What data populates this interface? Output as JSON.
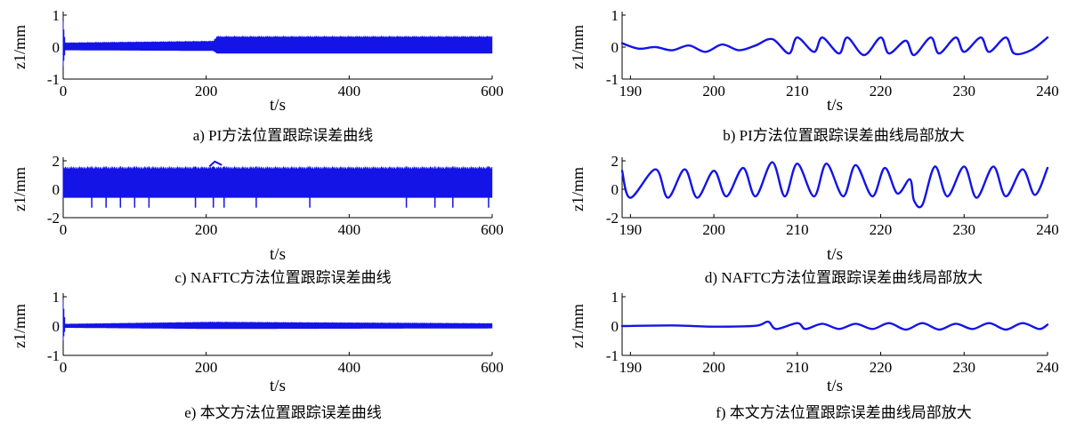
{
  "figure": {
    "panels": [
      {
        "id": "a",
        "caption": "a)   PI方法位置跟踪误差曲线"
      },
      {
        "id": "b",
        "caption": "b)   PI方法位置跟踪误差曲线局部放大"
      },
      {
        "id": "c",
        "caption": "c)   NAFTC方法位置跟踪误差曲线"
      },
      {
        "id": "d",
        "caption": "d)   NAFTC方法位置跟踪误差曲线局部放大"
      },
      {
        "id": "e",
        "caption": "e)   本文方法位置跟踪误差曲线"
      },
      {
        "id": "f",
        "caption": "f)   本文方法位置跟踪误差曲线局部放大"
      }
    ],
    "series_color": "#1414e6"
  },
  "chart_data": [
    {
      "id": "a",
      "type": "line",
      "title": "",
      "xlabel": "t/s",
      "ylabel": "z1/mm",
      "xlim": [
        0,
        600
      ],
      "ylim": [
        -1,
        1
      ],
      "xticks": [
        "0",
        "200",
        "400",
        "600"
      ],
      "yticks": [
        "1",
        "0",
        "-1"
      ],
      "series": [
        {
          "x": [
            0,
            3,
            10,
            210,
            215,
            600
          ],
          "ymin": [
            -0.6,
            -0.1,
            -0.1,
            -0.12,
            -0.2,
            -0.2
          ],
          "ymax": [
            0.8,
            0.15,
            0.15,
            0.2,
            0.35,
            0.35
          ]
        }
      ]
    },
    {
      "id": "b",
      "type": "line",
      "title": "",
      "xlabel": "t/s",
      "ylabel": "z1/mm",
      "xlim": [
        189,
        240
      ],
      "ylim": [
        -1,
        1
      ],
      "xticks": [
        "190",
        "200",
        "210",
        "220",
        "230",
        "240"
      ],
      "yticks": [
        "1",
        "0",
        "-1"
      ],
      "series": [
        {
          "x": [
            189,
            191,
            193,
            195,
            197,
            199,
            201,
            203,
            205,
            207,
            209,
            210,
            212,
            213,
            215,
            216,
            218,
            220,
            221,
            223,
            224,
            226,
            227,
            229,
            230,
            232,
            233,
            235,
            236,
            238,
            240
          ],
          "y": [
            0.12,
            -0.05,
            0.0,
            -0.1,
            0.05,
            -0.15,
            0.08,
            -0.1,
            0.05,
            0.25,
            -0.2,
            0.3,
            -0.15,
            0.3,
            -0.2,
            0.3,
            -0.25,
            0.3,
            -0.2,
            0.2,
            -0.25,
            0.3,
            -0.2,
            0.3,
            -0.15,
            0.3,
            -0.15,
            0.3,
            -0.2,
            -0.1,
            0.3
          ]
        }
      ]
    },
    {
      "id": "c",
      "type": "line",
      "title": "",
      "xlabel": "t/s",
      "ylabel": "z1/mm",
      "xlim": [
        0,
        600
      ],
      "ylim": [
        -2,
        2
      ],
      "xticks": [
        "0",
        "200",
        "400",
        "600"
      ],
      "yticks": [
        "2",
        "0",
        "-2"
      ],
      "series": [
        {
          "x": [
            0,
            210,
            600
          ],
          "ymin": [
            -0.6,
            -0.6,
            -0.6
          ],
          "ymax": [
            1.6,
            1.6,
            1.6
          ]
        }
      ],
      "annotations": [
        {
          "x": 212,
          "y": 1.95
        }
      ]
    },
    {
      "id": "d",
      "type": "line",
      "title": "",
      "xlabel": "t/s",
      "ylabel": "z1/mm",
      "xlim": [
        189,
        240
      ],
      "ylim": [
        -2,
        2
      ],
      "xticks": [
        "190",
        "200",
        "210",
        "220",
        "230",
        "240"
      ],
      "yticks": [
        "2",
        "0",
        "-2"
      ],
      "series": [
        {
          "x": [
            189,
            190,
            193,
            194.5,
            196.5,
            198,
            200,
            201.5,
            203.5,
            205,
            207,
            208.5,
            210,
            212,
            213.5,
            215.5,
            217,
            219,
            220.5,
            222,
            223.5,
            224,
            225,
            226.5,
            228,
            230,
            231.5,
            233.5,
            235,
            237,
            238.5,
            240
          ],
          "y": [
            1.3,
            -0.6,
            1.4,
            -0.6,
            1.4,
            -0.6,
            1.3,
            -0.5,
            1.5,
            -0.5,
            1.9,
            -0.5,
            1.8,
            -0.5,
            1.8,
            -0.5,
            1.7,
            -0.5,
            1.5,
            -0.3,
            0.7,
            -0.8,
            -1.1,
            1.6,
            -0.5,
            1.6,
            -0.6,
            1.6,
            -0.5,
            1.4,
            -0.4,
            1.5
          ]
        }
      ]
    },
    {
      "id": "e",
      "type": "line",
      "title": "",
      "xlabel": "t/s",
      "ylabel": "z1/mm",
      "xlim": [
        0,
        600
      ],
      "ylim": [
        -1,
        1
      ],
      "xticks": [
        "0",
        "200",
        "400",
        "600"
      ],
      "yticks": [
        "1",
        "0",
        "-1"
      ],
      "series": [
        {
          "x": [
            0,
            3,
            210,
            600
          ],
          "ymin": [
            -0.5,
            -0.06,
            -0.1,
            -0.08
          ],
          "ymax": [
            0.9,
            0.08,
            0.15,
            0.1
          ]
        }
      ]
    },
    {
      "id": "f",
      "type": "line",
      "title": "",
      "xlabel": "t/s",
      "ylabel": "z1/mm",
      "xlim": [
        189,
        240
      ],
      "ylim": [
        -1,
        1
      ],
      "xticks": [
        "190",
        "200",
        "210",
        "220",
        "230",
        "240"
      ],
      "yticks": [
        "1",
        "0",
        "-1"
      ],
      "series": [
        {
          "x": [
            189,
            195,
            200,
            205,
            206.5,
            207.5,
            210,
            211,
            213,
            215,
            217,
            219,
            221,
            223,
            225,
            227,
            229,
            231,
            233,
            235,
            237,
            239,
            240
          ],
          "y": [
            0.0,
            0.02,
            -0.02,
            0.01,
            0.15,
            -0.1,
            0.1,
            -0.1,
            0.08,
            -0.1,
            0.08,
            -0.1,
            0.1,
            -0.12,
            0.1,
            -0.12,
            0.08,
            -0.1,
            0.1,
            -0.12,
            0.1,
            -0.1,
            0.05
          ]
        }
      ]
    }
  ]
}
